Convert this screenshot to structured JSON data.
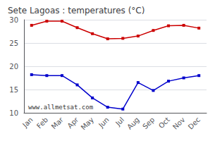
{
  "chart_data": {
    "type": "line",
    "title": "Sete Lagoas : temperatures (°C)",
    "categories": [
      "Jan",
      "Feb",
      "Mar",
      "Apr",
      "May",
      "Jun",
      "Jul",
      "Aug",
      "Sep",
      "Oct",
      "Nov",
      "Dec"
    ],
    "series": [
      {
        "color": "#cc0000",
        "values": [
          28.8,
          29.7,
          29.7,
          28.3,
          27.0,
          25.9,
          26.0,
          26.5,
          27.7,
          28.7,
          28.8,
          28.2
        ]
      },
      {
        "color": "#0000cc",
        "values": [
          18.2,
          18.0,
          18.0,
          16.0,
          13.2,
          11.2,
          10.8,
          16.5,
          14.8,
          16.8,
          17.5,
          18.0
        ]
      }
    ],
    "ylim": [
      10,
      30
    ],
    "yticks": [
      10,
      15,
      20,
      25,
      30
    ],
    "grid": true,
    "marker": "square",
    "annotations": [
      "www.allmetsat.com"
    ]
  }
}
